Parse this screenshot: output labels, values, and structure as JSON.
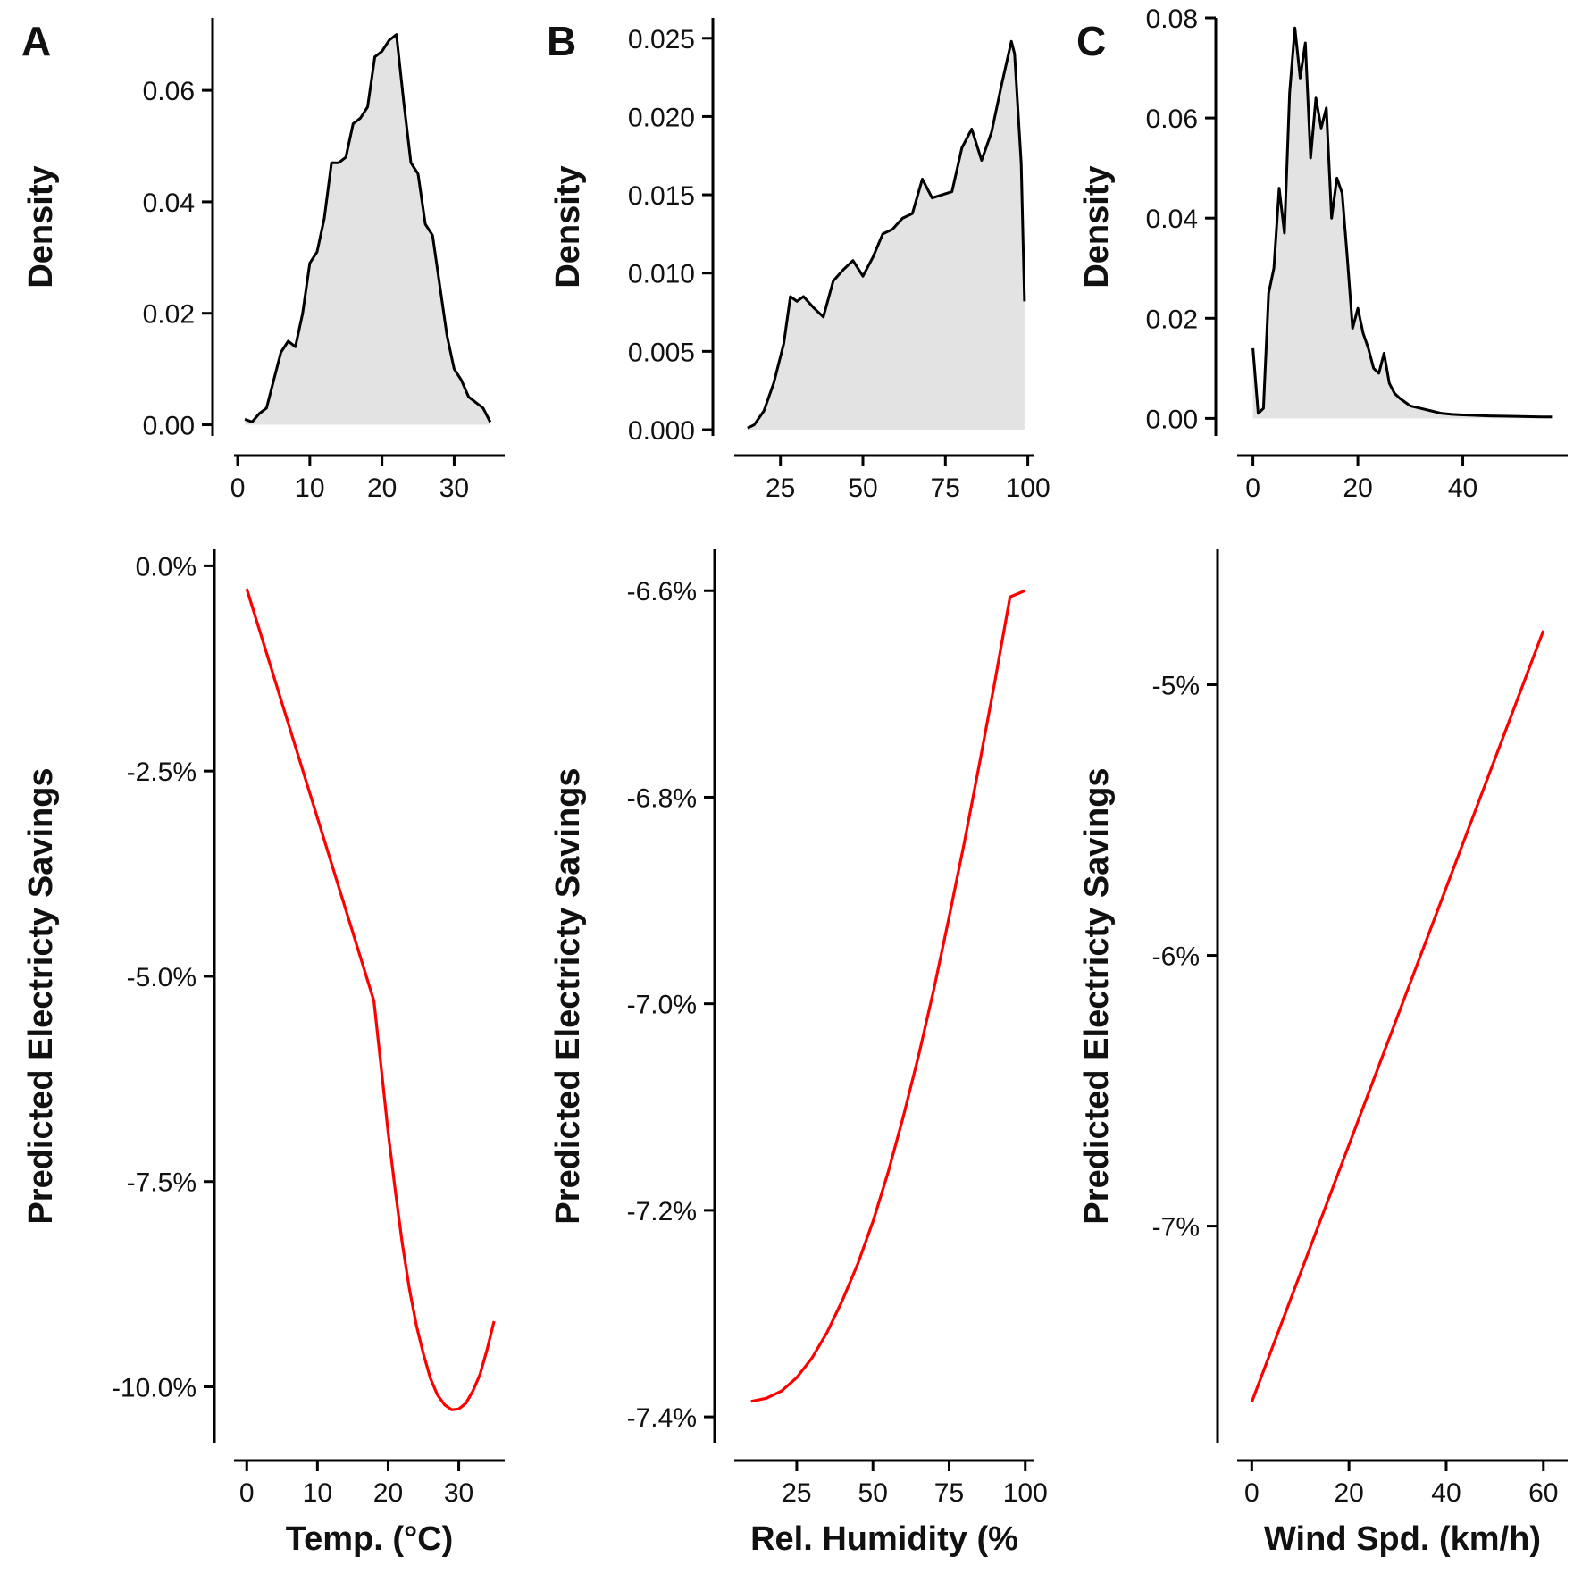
{
  "chart_data": [
    {
      "panel": "A",
      "type": "area",
      "ylabel": "Density",
      "xlabel": "",
      "x_ticks": [
        0,
        10,
        20,
        30
      ],
      "y_ticks": [
        0.0,
        0.02,
        0.04,
        0.06
      ],
      "y_tick_labels": [
        "0.00",
        "0.02",
        "0.04",
        "0.06"
      ],
      "xlim": [
        -0.5,
        37
      ],
      "ylim": [
        -0.002,
        0.073
      ],
      "x": [
        1,
        2,
        3,
        4,
        5,
        6,
        7,
        8,
        9,
        10,
        11,
        12,
        13,
        14,
        15,
        16,
        17,
        18,
        19,
        20,
        21,
        22,
        23,
        24,
        25,
        26,
        27,
        28,
        29,
        30,
        31,
        32,
        33,
        34,
        35
      ],
      "values": [
        0.001,
        0.0005,
        0.002,
        0.003,
        0.008,
        0.013,
        0.015,
        0.014,
        0.02,
        0.029,
        0.031,
        0.037,
        0.047,
        0.047,
        0.048,
        0.054,
        0.055,
        0.057,
        0.066,
        0.067,
        0.069,
        0.07,
        0.058,
        0.047,
        0.045,
        0.036,
        0.034,
        0.025,
        0.016,
        0.01,
        0.008,
        0.005,
        0.004,
        0.003,
        0.0005
      ]
    },
    {
      "panel": "B",
      "type": "area",
      "ylabel": "Density",
      "xlabel": "",
      "x_ticks": [
        25,
        50,
        75,
        100
      ],
      "y_ticks": [
        0.0,
        0.005,
        0.01,
        0.015,
        0.02,
        0.025
      ],
      "y_tick_labels": [
        "0.000",
        "0.005",
        "0.010",
        "0.015",
        "0.020",
        "0.025"
      ],
      "xlim": [
        11,
        102
      ],
      "ylim": [
        -0.0004,
        0.0263
      ],
      "x": [
        15,
        17,
        20,
        23,
        26,
        28,
        30,
        32,
        35,
        38,
        41,
        44,
        47,
        50,
        53,
        56,
        59,
        62,
        65,
        68,
        71,
        74,
        77,
        80,
        83,
        86,
        89,
        92,
        95,
        96,
        98,
        99
      ],
      "values": [
        0.0001,
        0.0003,
        0.0012,
        0.003,
        0.0055,
        0.0085,
        0.0082,
        0.0085,
        0.0078,
        0.0072,
        0.0095,
        0.0102,
        0.0108,
        0.0098,
        0.011,
        0.0125,
        0.0128,
        0.0135,
        0.0138,
        0.016,
        0.0148,
        0.015,
        0.0152,
        0.018,
        0.0192,
        0.0172,
        0.019,
        0.022,
        0.0248,
        0.024,
        0.017,
        0.0082
      ]
    },
    {
      "panel": "C",
      "type": "area",
      "ylabel": "Density",
      "xlabel": "",
      "x_ticks": [
        0,
        20,
        40
      ],
      "y_ticks": [
        0.0,
        0.02,
        0.04,
        0.06,
        0.08
      ],
      "y_tick_labels": [
        "0.00",
        "0.02",
        "0.04",
        "0.06",
        "0.08"
      ],
      "xlim": [
        -3,
        60
      ],
      "ylim": [
        -0.0035,
        0.08
      ],
      "x": [
        0,
        1,
        2,
        3,
        4,
        5,
        6,
        7,
        8,
        9,
        10,
        11,
        12,
        13,
        14,
        15,
        16,
        17,
        18,
        19,
        20,
        21,
        22,
        23,
        24,
        25,
        26,
        27,
        28,
        30,
        32,
        34,
        36,
        38,
        40,
        45,
        50,
        55,
        57
      ],
      "values": [
        0.014,
        0.001,
        0.002,
        0.025,
        0.03,
        0.046,
        0.037,
        0.065,
        0.078,
        0.068,
        0.075,
        0.052,
        0.064,
        0.058,
        0.062,
        0.04,
        0.048,
        0.045,
        0.032,
        0.018,
        0.022,
        0.017,
        0.014,
        0.01,
        0.009,
        0.013,
        0.007,
        0.005,
        0.004,
        0.0025,
        0.002,
        0.0015,
        0.001,
        0.0008,
        0.0007,
        0.0005,
        0.0004,
        0.0003,
        0.0003
      ]
    },
    {
      "panel": "A",
      "type": "line",
      "ylabel": "Predicted Electricty Savings",
      "xlabel": "Temp. (°C)",
      "x_ticks": [
        0,
        10,
        20,
        30
      ],
      "y_ticks": [
        0.0,
        -2.5,
        -5.0,
        -7.5,
        -10.0
      ],
      "y_tick_labels": [
        "0.0%",
        "-2.5%",
        "-5.0%",
        "-7.5%",
        "-10.0%"
      ],
      "xlim": [
        -1.8,
        36.5
      ],
      "ylim": [
        -10.68,
        0.2
      ],
      "x": [
        0,
        18,
        19,
        20,
        21,
        22,
        23,
        24,
        25,
        26,
        27,
        28,
        29,
        30,
        31,
        32,
        33,
        34,
        35
      ],
      "values": [
        -0.28,
        -5.3,
        -6.1,
        -6.9,
        -7.6,
        -8.25,
        -8.8,
        -9.25,
        -9.6,
        -9.9,
        -10.1,
        -10.22,
        -10.28,
        -10.27,
        -10.2,
        -10.05,
        -9.85,
        -9.55,
        -9.2
      ]
    },
    {
      "panel": "B",
      "type": "line",
      "ylabel": "Predicted Electricty Savings",
      "xlabel": "Rel. Humidity (%",
      "x_ticks": [
        25,
        50,
        75,
        100
      ],
      "y_ticks": [
        -6.6,
        -6.8,
        -7.0,
        -7.2,
        -7.4
      ],
      "y_tick_labels": [
        "-6.6%",
        "-6.8%",
        "-7.0%",
        "-7.2%",
        "-7.4%"
      ],
      "xlim": [
        4.5,
        103
      ],
      "ylim": [
        -7.425,
        -6.56
      ],
      "x": [
        10,
        15,
        20,
        25,
        30,
        35,
        40,
        45,
        50,
        55,
        60,
        65,
        70,
        75,
        80,
        85,
        90,
        95,
        100
      ],
      "values": [
        -7.385,
        -7.382,
        -7.375,
        -7.362,
        -7.343,
        -7.318,
        -7.287,
        -7.252,
        -7.211,
        -7.163,
        -7.109,
        -7.05,
        -6.986,
        -6.916,
        -6.844,
        -6.767,
        -6.688,
        -6.606,
        -6.6
      ]
    },
    {
      "panel": "C",
      "type": "line",
      "ylabel": "Predicted Electricty Savings",
      "xlabel": "Wind Spd. (km/h)",
      "x_ticks": [
        0,
        20,
        40,
        60
      ],
      "y_ticks": [
        -5,
        -6,
        -7
      ],
      "y_tick_labels": [
        "-5%",
        "-6%",
        "-7%"
      ],
      "xlim": [
        -3,
        65
      ],
      "ylim": [
        -7.8,
        -4.5
      ],
      "x": [
        0,
        60
      ],
      "values": [
        -7.65,
        -4.8
      ]
    }
  ],
  "panel_letters": [
    "A",
    "B",
    "C"
  ]
}
